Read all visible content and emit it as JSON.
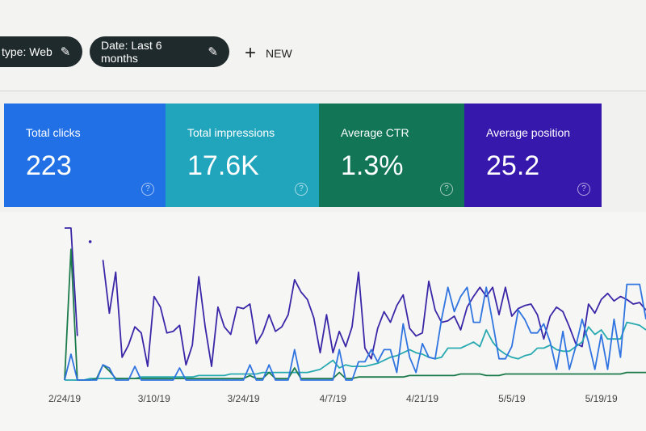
{
  "filters": {
    "chips": [
      {
        "label": "type: Web",
        "icon": "pencil-icon"
      },
      {
        "label": "Date: Last 6 months",
        "icon": "pencil-icon"
      }
    ],
    "new_button": {
      "icon": "plus-icon",
      "label": "NEW"
    }
  },
  "metrics": [
    {
      "label": "Total clicks",
      "value": "223",
      "color": "#2270e6",
      "help": "?"
    },
    {
      "label": "Total impressions",
      "value": "17.6K",
      "color": "#21a5bd",
      "help": "?"
    },
    {
      "label": "Average CTR",
      "value": "1.3%",
      "color": "#127656",
      "help": "?"
    },
    {
      "label": "Average position",
      "value": "25.2",
      "color": "#3618ad",
      "help": "?"
    }
  ],
  "chart_data": {
    "type": "line",
    "x_tick_labels": [
      "2/24/19",
      "3/10/19",
      "3/24/19",
      "4/7/19",
      "4/21/19",
      "5/5/19",
      "5/19/19"
    ],
    "x_tick_every_days": 14,
    "y_axis": "unlabeled (relative scale 0-100)",
    "ylim": [
      0,
      100
    ],
    "grid": false,
    "series": [
      {
        "metric": "Average position",
        "color": "#3a27a8",
        "values": [
          100,
          100,
          29,
          null,
          91,
          null,
          79,
          44,
          71,
          15,
          23,
          35,
          31,
          9,
          55,
          48,
          31,
          32,
          36,
          10,
          23,
          68,
          35,
          9,
          48,
          35,
          30,
          48,
          47,
          50,
          24,
          31,
          43,
          32,
          35,
          43,
          66,
          58,
          53,
          41,
          18,
          43,
          18,
          32,
          22,
          35,
          71,
          21,
          14,
          34,
          45,
          38,
          49,
          56,
          34,
          29,
          31,
          65,
          46,
          38,
          39,
          42,
          33,
          48,
          55,
          61,
          55,
          61,
          43,
          61,
          42,
          47,
          49,
          50,
          43,
          27,
          42,
          48,
          45,
          35,
          24,
          22,
          50,
          44,
          53,
          57,
          52,
          55,
          53,
          50,
          51,
          46
        ]
      },
      {
        "metric": "Total impressions",
        "color": "#27a9b0",
        "values": [
          0,
          0,
          0,
          0,
          1,
          1,
          1,
          1,
          1,
          1,
          1,
          1,
          2,
          2,
          2,
          2,
          2,
          2,
          2,
          2,
          2,
          3,
          3,
          3,
          3,
          3,
          4,
          4,
          4,
          4,
          4,
          5,
          5,
          5,
          5,
          5,
          5,
          5,
          5,
          6,
          7,
          10,
          13,
          8,
          10,
          9,
          9,
          9,
          10,
          11,
          13,
          15,
          16,
          18,
          20,
          18,
          17,
          15,
          14,
          15,
          21,
          21,
          21,
          23,
          25,
          22,
          33,
          25,
          20,
          17,
          15,
          14,
          16,
          17,
          21,
          21,
          23,
          20,
          19,
          19,
          22,
          25,
          35,
          30,
          33,
          27,
          27,
          27,
          38,
          37,
          36,
          33
        ]
      },
      {
        "metric": "Average CTR",
        "color": "#1b7a4a",
        "values": [
          0,
          86,
          0,
          0,
          0,
          1,
          10,
          6,
          1,
          1,
          1,
          1,
          1,
          1,
          1,
          1,
          1,
          1,
          1,
          1,
          1,
          1,
          1,
          1,
          1,
          1,
          1,
          1,
          1,
          3,
          1,
          1,
          5,
          1,
          1,
          1,
          8,
          1,
          1,
          1,
          1,
          1,
          1,
          5,
          1,
          1,
          2,
          2,
          2,
          2,
          2,
          2,
          2,
          2,
          3,
          3,
          3,
          3,
          3,
          3,
          3,
          3,
          4,
          4,
          4,
          4,
          3,
          3,
          3,
          4,
          4,
          4,
          4,
          4,
          4,
          4,
          4,
          4,
          4,
          4,
          4,
          4,
          4,
          4,
          4,
          4,
          4,
          4,
          5,
          5,
          5,
          5
        ]
      },
      {
        "metric": "Total clicks",
        "color": "#2f74e0",
        "values": [
          0,
          17,
          0,
          0,
          0,
          0,
          10,
          8,
          0,
          0,
          0,
          9,
          0,
          0,
          0,
          0,
          0,
          0,
          8,
          0,
          0,
          0,
          0,
          0,
          0,
          0,
          0,
          0,
          0,
          10,
          0,
          0,
          10,
          0,
          0,
          0,
          20,
          0,
          0,
          0,
          0,
          0,
          0,
          20,
          0,
          0,
          12,
          12,
          20,
          12,
          20,
          20,
          5,
          37,
          15,
          5,
          24,
          15,
          14,
          40,
          61,
          45,
          55,
          61,
          38,
          38,
          61,
          38,
          14,
          14,
          22,
          46,
          40,
          31,
          31,
          37,
          25,
          7,
          32,
          7,
          22,
          40,
          25,
          7,
          30,
          7,
          40,
          15,
          63,
          63,
          63,
          40
        ]
      }
    ]
  }
}
